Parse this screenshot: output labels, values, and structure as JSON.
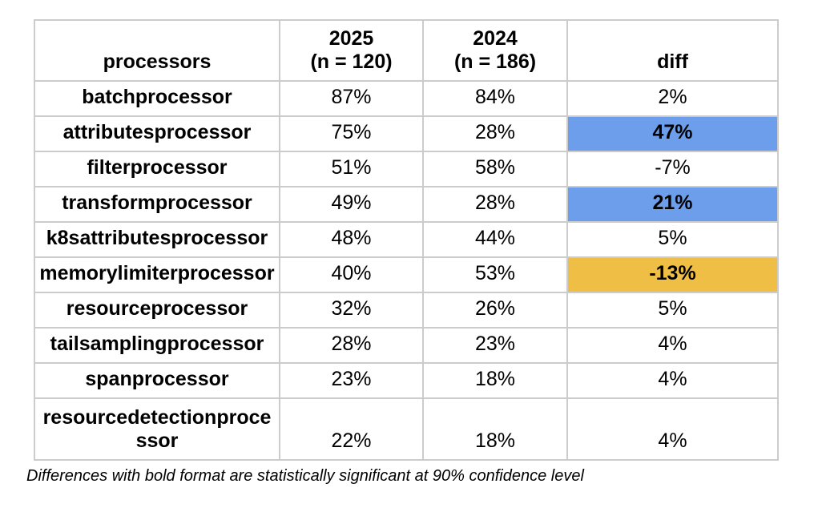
{
  "table": {
    "columns": {
      "processors": "processors",
      "y2025_line1": "2025",
      "y2025_line2": "(n = 120)",
      "y2024_line1": "2024",
      "y2024_line2": "(n = 186)",
      "diff": "diff"
    },
    "rows": [
      {
        "name": "batchprocessor",
        "y2025": "87%",
        "y2024": "84%",
        "diff": "2%",
        "highlight": "none",
        "significant": false
      },
      {
        "name": "attributesprocessor",
        "y2025": "75%",
        "y2024": "28%",
        "diff": "47%",
        "highlight": "blue",
        "significant": true
      },
      {
        "name": "filterprocessor",
        "y2025": "51%",
        "y2024": "58%",
        "diff": "-7%",
        "highlight": "none",
        "significant": false
      },
      {
        "name": "transformprocessor",
        "y2025": "49%",
        "y2024": "28%",
        "diff": "21%",
        "highlight": "blue",
        "significant": true
      },
      {
        "name": "k8sattributesprocessor",
        "y2025": "48%",
        "y2024": "44%",
        "diff": "5%",
        "highlight": "none",
        "significant": false
      },
      {
        "name": "memorylimiterprocessor",
        "y2025": "40%",
        "y2024": "53%",
        "diff": "-13%",
        "highlight": "orange",
        "significant": true
      },
      {
        "name": "resourceprocessor",
        "y2025": "32%",
        "y2024": "26%",
        "diff": "5%",
        "highlight": "none",
        "significant": false
      },
      {
        "name": "tailsamplingprocessor",
        "y2025": "28%",
        "y2024": "23%",
        "diff": "4%",
        "highlight": "none",
        "significant": false
      },
      {
        "name": "spanprocessor",
        "y2025": "23%",
        "y2024": "18%",
        "diff": "4%",
        "highlight": "none",
        "significant": false
      },
      {
        "name": "resourcedetectionprocessor",
        "y2025": "22%",
        "y2024": "18%",
        "diff": "4%",
        "highlight": "none",
        "significant": false
      }
    ]
  },
  "footnote": "Differences with bold format are statistically significant at 90% confidence level",
  "colors": {
    "significant_increase_bg": "#6d9eeb",
    "significant_decrease_bg": "#efbf45",
    "grid_line": "#cccccc"
  },
  "chart_data": {
    "type": "table",
    "title": "",
    "categories": [
      "batchprocessor",
      "attributesprocessor",
      "filterprocessor",
      "transformprocessor",
      "k8sattributesprocessor",
      "memorylimiterprocessor",
      "resourceprocessor",
      "tailsamplingprocessor",
      "spanprocessor",
      "resourcedetectionprocessor"
    ],
    "series": [
      {
        "name": "2025 (n = 120)",
        "values": [
          87,
          75,
          51,
          49,
          48,
          40,
          32,
          28,
          23,
          22
        ],
        "unit": "%"
      },
      {
        "name": "2024 (n = 186)",
        "values": [
          84,
          28,
          58,
          28,
          44,
          53,
          26,
          23,
          18,
          18
        ],
        "unit": "%"
      },
      {
        "name": "diff",
        "values": [
          2,
          47,
          -7,
          21,
          5,
          -13,
          5,
          4,
          4,
          4
        ],
        "unit": "%"
      }
    ],
    "annotations": {
      "bold_highlighted_diffs": [
        {
          "category": "attributesprocessor",
          "diff": 47,
          "highlight_color": "#6d9eeb"
        },
        {
          "category": "transformprocessor",
          "diff": 21,
          "highlight_color": "#6d9eeb"
        },
        {
          "category": "memorylimiterprocessor",
          "diff": -13,
          "highlight_color": "#efbf45"
        }
      ],
      "note": "Differences with bold format are statistically significant at 90% confidence level"
    }
  }
}
